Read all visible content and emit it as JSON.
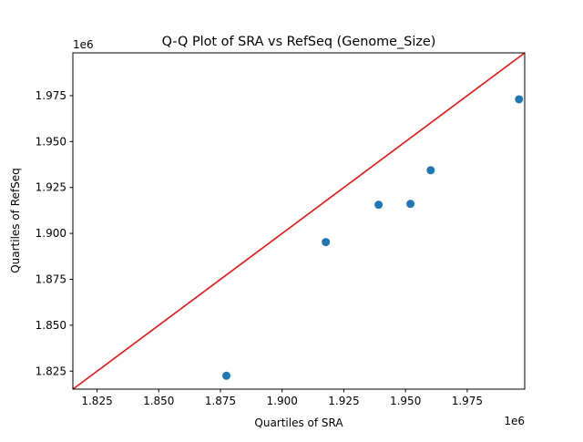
{
  "chart_data": {
    "type": "scatter",
    "title": "Q-Q Plot of SRA vs RefSeq (Genome_Size)",
    "xlabel": "Quartiles of SRA",
    "ylabel": "Quartiles of RefSeq",
    "x_offset_label": "1e6",
    "y_offset_label": "1e6",
    "xlim": [
      1.8152,
      1.9983
    ],
    "ylim": [
      1.8152,
      1.9983
    ],
    "xticks": [
      1.825,
      1.85,
      1.875,
      1.9,
      1.925,
      1.95,
      1.975
    ],
    "yticks": [
      1.825,
      1.85,
      1.875,
      1.9,
      1.925,
      1.95,
      1.975
    ],
    "xtick_labels": [
      "1.825",
      "1.850",
      "1.875",
      "1.900",
      "1.925",
      "1.950",
      "1.975"
    ],
    "ytick_labels": [
      "1.825",
      "1.850",
      "1.875",
      "1.900",
      "1.925",
      "1.950",
      "1.975"
    ],
    "grid": false,
    "points": {
      "x": [
        1.8774,
        1.9177,
        1.9391,
        1.952,
        1.9602,
        1.996
      ],
      "y": [
        1.8225,
        1.8953,
        1.9156,
        1.9161,
        1.9344,
        1.973
      ],
      "color": "#1f77b4"
    },
    "reference_line": {
      "type": "y=x",
      "color": "#ff0000"
    }
  }
}
